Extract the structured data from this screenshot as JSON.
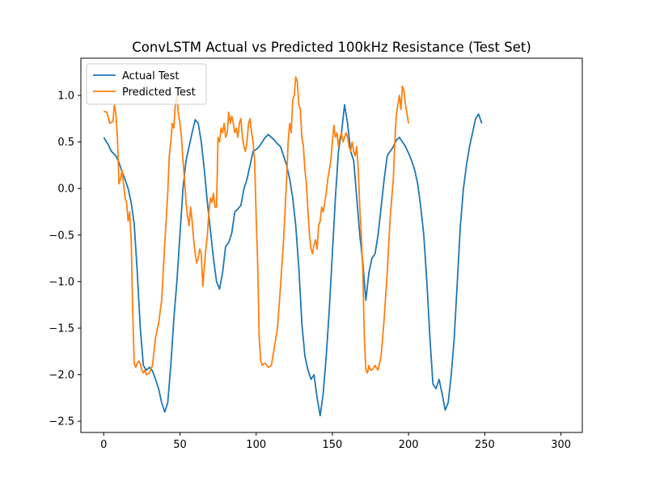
{
  "chart_data": {
    "type": "line",
    "title": "ConvLSTM Actual vs Predicted 100kHz Resistance (Test Set)",
    "xlabel": "",
    "ylabel": "",
    "xlim": [
      -15,
      314
    ],
    "ylim": [
      -2.62,
      1.4
    ],
    "x_ticks": [
      0,
      50,
      100,
      150,
      200,
      250,
      300
    ],
    "y_ticks": [
      -2.5,
      -2.0,
      -1.5,
      -1.0,
      -0.5,
      0.0,
      0.5,
      1.0
    ],
    "y_tick_labels": [
      "−2.5",
      "−2.0",
      "−1.5",
      "−1.0",
      "−0.5",
      "0.0",
      "0.5",
      "1.0"
    ],
    "legend_position": "top-left",
    "grid": false,
    "series": [
      {
        "name": "Actual Test",
        "color": "#1f77b4",
        "points": [
          [
            0,
            0.55
          ],
          [
            3,
            0.47
          ],
          [
            5,
            0.4
          ],
          [
            8,
            0.35
          ],
          [
            10,
            0.28
          ],
          [
            12,
            0.18
          ],
          [
            14,
            0.1
          ],
          [
            16,
            0.0
          ],
          [
            18,
            -0.15
          ],
          [
            20,
            -0.38
          ],
          [
            22,
            -0.9
          ],
          [
            24,
            -1.5
          ],
          [
            26,
            -1.9
          ],
          [
            28,
            -1.95
          ],
          [
            30,
            -1.92
          ],
          [
            32,
            -1.96
          ],
          [
            34,
            -2.05
          ],
          [
            36,
            -2.15
          ],
          [
            38,
            -2.3
          ],
          [
            40,
            -2.4
          ],
          [
            42,
            -2.3
          ],
          [
            44,
            -1.9
          ],
          [
            46,
            -1.4
          ],
          [
            48,
            -1.0
          ],
          [
            50,
            -0.5
          ],
          [
            52,
            0.0
          ],
          [
            54,
            0.3
          ],
          [
            56,
            0.45
          ],
          [
            58,
            0.6
          ],
          [
            60,
            0.74
          ],
          [
            62,
            0.7
          ],
          [
            64,
            0.5
          ],
          [
            66,
            0.2
          ],
          [
            68,
            -0.15
          ],
          [
            70,
            -0.45
          ],
          [
            72,
            -0.75
          ],
          [
            74,
            -1.0
          ],
          [
            76,
            -1.08
          ],
          [
            78,
            -0.9
          ],
          [
            80,
            -0.62
          ],
          [
            82,
            -0.58
          ],
          [
            84,
            -0.48
          ],
          [
            86,
            -0.25
          ],
          [
            88,
            -0.22
          ],
          [
            90,
            -0.18
          ],
          [
            92,
            0.0
          ],
          [
            94,
            0.1
          ],
          [
            96,
            0.25
          ],
          [
            98,
            0.4
          ],
          [
            100,
            0.42
          ],
          [
            102,
            0.45
          ],
          [
            104,
            0.5
          ],
          [
            106,
            0.55
          ],
          [
            108,
            0.58
          ],
          [
            110,
            0.55
          ],
          [
            112,
            0.52
          ],
          [
            114,
            0.48
          ],
          [
            116,
            0.45
          ],
          [
            118,
            0.35
          ],
          [
            120,
            0.25
          ],
          [
            122,
            0.1
          ],
          [
            124,
            -0.1
          ],
          [
            126,
            -0.4
          ],
          [
            128,
            -0.85
          ],
          [
            130,
            -1.45
          ],
          [
            132,
            -1.8
          ],
          [
            134,
            -1.95
          ],
          [
            136,
            -2.05
          ],
          [
            138,
            -2.0
          ],
          [
            140,
            -2.25
          ],
          [
            142,
            -2.44
          ],
          [
            144,
            -2.2
          ],
          [
            146,
            -1.8
          ],
          [
            148,
            -1.3
          ],
          [
            150,
            -0.7
          ],
          [
            152,
            -0.1
          ],
          [
            154,
            0.4
          ],
          [
            156,
            0.6
          ],
          [
            158,
            0.9
          ],
          [
            160,
            0.7
          ],
          [
            162,
            0.4
          ],
          [
            164,
            0.3
          ],
          [
            166,
            -0.1
          ],
          [
            168,
            -0.5
          ],
          [
            170,
            -0.8
          ],
          [
            172,
            -1.2
          ],
          [
            174,
            -0.9
          ],
          [
            176,
            -0.75
          ],
          [
            178,
            -0.7
          ],
          [
            180,
            -0.5
          ],
          [
            182,
            -0.2
          ],
          [
            184,
            0.1
          ],
          [
            186,
            0.35
          ],
          [
            188,
            0.4
          ],
          [
            190,
            0.45
          ],
          [
            192,
            0.52
          ],
          [
            194,
            0.55
          ],
          [
            196,
            0.5
          ],
          [
            198,
            0.45
          ],
          [
            200,
            0.38
          ],
          [
            202,
            0.3
          ],
          [
            204,
            0.2
          ],
          [
            206,
            0.05
          ],
          [
            208,
            -0.2
          ],
          [
            210,
            -0.5
          ],
          [
            212,
            -1.0
          ],
          [
            214,
            -1.6
          ],
          [
            216,
            -2.1
          ],
          [
            218,
            -2.15
          ],
          [
            220,
            -2.05
          ],
          [
            222,
            -2.2
          ],
          [
            224,
            -2.38
          ],
          [
            226,
            -2.3
          ],
          [
            228,
            -2.0
          ],
          [
            230,
            -1.6
          ],
          [
            232,
            -1.0
          ],
          [
            234,
            -0.4
          ],
          [
            236,
            0.0
          ],
          [
            238,
            0.25
          ],
          [
            240,
            0.45
          ],
          [
            242,
            0.6
          ],
          [
            244,
            0.75
          ],
          [
            246,
            0.8
          ],
          [
            248,
            0.7
          ]
        ]
      },
      {
        "name": "Predicted Test",
        "color": "#ff7f0e",
        "points": [
          [
            0,
            0.83
          ],
          [
            2,
            0.82
          ],
          [
            4,
            0.7
          ],
          [
            6,
            0.72
          ],
          [
            7,
            0.9
          ],
          [
            8,
            0.8
          ],
          [
            9,
            0.55
          ],
          [
            10,
            0.05
          ],
          [
            11,
            0.1
          ],
          [
            12,
            0.2
          ],
          [
            13,
            0.05
          ],
          [
            14,
            -0.1
          ],
          [
            15,
            -0.15
          ],
          [
            16,
            -0.35
          ],
          [
            17,
            -0.25
          ],
          [
            18,
            -0.55
          ],
          [
            19,
            -1.3
          ],
          [
            20,
            -1.88
          ],
          [
            21,
            -1.92
          ],
          [
            22,
            -1.88
          ],
          [
            23,
            -1.85
          ],
          [
            24,
            -1.88
          ],
          [
            25,
            -1.95
          ],
          [
            26,
            -1.98
          ],
          [
            27,
            -1.95
          ],
          [
            28,
            -2.0
          ],
          [
            30,
            -1.98
          ],
          [
            32,
            -1.9
          ],
          [
            34,
            -1.6
          ],
          [
            36,
            -1.45
          ],
          [
            38,
            -1.2
          ],
          [
            40,
            -0.6
          ],
          [
            42,
            -0.05
          ],
          [
            43,
            0.35
          ],
          [
            44,
            0.5
          ],
          [
            45,
            0.7
          ],
          [
            46,
            0.65
          ],
          [
            47,
            0.9
          ],
          [
            48,
            1.0
          ],
          [
            49,
            0.8
          ],
          [
            50,
            0.7
          ],
          [
            51,
            0.55
          ],
          [
            52,
            0.3
          ],
          [
            53,
            0.1
          ],
          [
            54,
            -0.15
          ],
          [
            55,
            -0.3
          ],
          [
            56,
            -0.4
          ],
          [
            57,
            -0.2
          ],
          [
            58,
            -0.35
          ],
          [
            59,
            -0.55
          ],
          [
            60,
            -0.7
          ],
          [
            61,
            -0.8
          ],
          [
            62,
            -0.75
          ],
          [
            63,
            -0.65
          ],
          [
            64,
            -0.7
          ],
          [
            65,
            -1.05
          ],
          [
            66,
            -0.85
          ],
          [
            67,
            -0.65
          ],
          [
            68,
            -0.5
          ],
          [
            69,
            -0.25
          ],
          [
            70,
            -0.1
          ],
          [
            71,
            -0.15
          ],
          [
            72,
            -0.05
          ],
          [
            73,
            -0.2
          ],
          [
            74,
            -0.2
          ],
          [
            75,
            0.55
          ],
          [
            76,
            0.5
          ],
          [
            77,
            0.65
          ],
          [
            78,
            0.6
          ],
          [
            79,
            0.7
          ],
          [
            80,
            0.55
          ],
          [
            81,
            0.6
          ],
          [
            82,
            0.82
          ],
          [
            83,
            0.7
          ],
          [
            84,
            0.78
          ],
          [
            85,
            0.7
          ],
          [
            86,
            0.6
          ],
          [
            87,
            0.65
          ],
          [
            88,
            0.55
          ],
          [
            89,
            0.7
          ],
          [
            90,
            0.75
          ],
          [
            91,
            0.55
          ],
          [
            92,
            0.45
          ],
          [
            93,
            0.4
          ],
          [
            94,
            0.5
          ],
          [
            95,
            0.7
          ],
          [
            96,
            0.75
          ],
          [
            97,
            0.6
          ],
          [
            98,
            0.5
          ],
          [
            99,
            0.3
          ],
          [
            100,
            -0.3
          ],
          [
            101,
            -0.8
          ],
          [
            102,
            -1.6
          ],
          [
            103,
            -1.85
          ],
          [
            104,
            -1.9
          ],
          [
            105,
            -1.88
          ],
          [
            106,
            -1.88
          ],
          [
            108,
            -1.92
          ],
          [
            110,
            -1.9
          ],
          [
            112,
            -1.7
          ],
          [
            114,
            -1.5
          ],
          [
            116,
            -1.05
          ],
          [
            118,
            -0.55
          ],
          [
            120,
            0.1
          ],
          [
            121,
            0.5
          ],
          [
            122,
            0.7
          ],
          [
            123,
            0.6
          ],
          [
            124,
            0.95
          ],
          [
            125,
            1.0
          ],
          [
            126,
            1.2
          ],
          [
            127,
            1.15
          ],
          [
            128,
            0.9
          ],
          [
            129,
            0.85
          ],
          [
            130,
            0.55
          ],
          [
            131,
            0.45
          ],
          [
            132,
            0.2
          ],
          [
            133,
            0.05
          ],
          [
            134,
            -0.25
          ],
          [
            135,
            -0.5
          ],
          [
            136,
            -0.65
          ],
          [
            137,
            -0.7
          ],
          [
            138,
            -0.6
          ],
          [
            139,
            -0.55
          ],
          [
            140,
            -0.65
          ],
          [
            141,
            -0.4
          ],
          [
            142,
            -0.35
          ],
          [
            143,
            -0.2
          ],
          [
            144,
            -0.25
          ],
          [
            145,
            -0.15
          ],
          [
            146,
            -0.05
          ],
          [
            147,
            0.1
          ],
          [
            148,
            0.2
          ],
          [
            149,
            0.3
          ],
          [
            150,
            0.5
          ],
          [
            151,
            0.68
          ],
          [
            152,
            0.55
          ],
          [
            153,
            0.6
          ],
          [
            154,
            0.45
          ],
          [
            155,
            0.55
          ],
          [
            156,
            0.6
          ],
          [
            157,
            0.5
          ],
          [
            158,
            0.55
          ],
          [
            159,
            0.6
          ],
          [
            160,
            0.55
          ],
          [
            161,
            0.45
          ],
          [
            162,
            0.4
          ],
          [
            163,
            0.5
          ],
          [
            164,
            0.4
          ],
          [
            165,
            0.35
          ],
          [
            166,
            0.45
          ],
          [
            167,
            0.2
          ],
          [
            168,
            -0.2
          ],
          [
            169,
            -0.5
          ],
          [
            170,
            -0.9
          ],
          [
            171,
            -1.6
          ],
          [
            172,
            -1.95
          ],
          [
            173,
            -1.98
          ],
          [
            174,
            -1.9
          ],
          [
            175,
            -1.95
          ],
          [
            176,
            -1.95
          ],
          [
            178,
            -1.9
          ],
          [
            180,
            -1.95
          ],
          [
            182,
            -1.8
          ],
          [
            184,
            -1.4
          ],
          [
            186,
            -0.9
          ],
          [
            188,
            -0.3
          ],
          [
            190,
            0.1
          ],
          [
            191,
            0.5
          ],
          [
            192,
            0.8
          ],
          [
            193,
            0.9
          ],
          [
            194,
            1.0
          ],
          [
            195,
            0.85
          ],
          [
            196,
            1.1
          ],
          [
            197,
            1.05
          ],
          [
            198,
            0.9
          ],
          [
            199,
            0.8
          ],
          [
            200,
            0.7
          ]
        ]
      }
    ]
  }
}
